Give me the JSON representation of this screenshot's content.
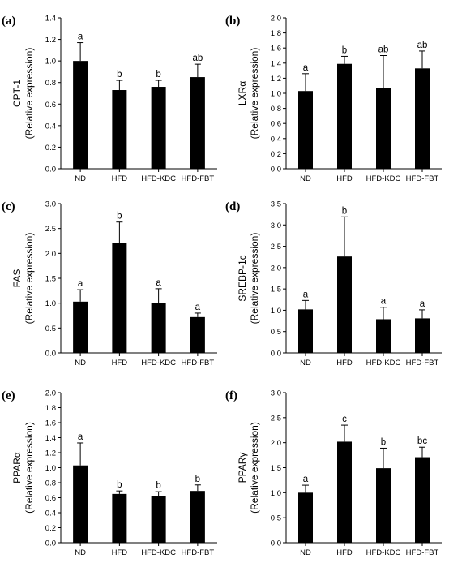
{
  "chart_data": [
    {
      "type": "bar",
      "panel_label": "(a)",
      "categories": [
        "ND",
        "HFD",
        "HFD-KDC",
        "HFD-FBT"
      ],
      "values": [
        1.0,
        0.73,
        0.76,
        0.85
      ],
      "errors": [
        0.17,
        0.09,
        0.06,
        0.12
      ],
      "significance": [
        "a",
        "b",
        "b",
        "ab"
      ],
      "ylabel_line1": "CPT-1",
      "ylabel_line2": "(Relative expression)",
      "ylim": [
        0,
        1.4
      ],
      "yticks": [
        "0.0",
        "0.2",
        "0.4",
        "0.6",
        "0.8",
        "1.0",
        "1.2",
        "1.4"
      ]
    },
    {
      "type": "bar",
      "panel_label": "(b)",
      "categories": [
        "ND",
        "HFD",
        "HFD-KDC",
        "HFD-FBT"
      ],
      "values": [
        1.03,
        1.39,
        1.07,
        1.33
      ],
      "errors": [
        0.23,
        0.1,
        0.43,
        0.23
      ],
      "significance": [
        "a",
        "b",
        "ab",
        "ab"
      ],
      "ylabel_line1": "LXRα",
      "ylabel_line2": "(Relative expression)",
      "ylim": [
        0,
        2.0
      ],
      "yticks": [
        "0.0",
        "0.2",
        "0.4",
        "0.6",
        "0.8",
        "1.0",
        "1.2",
        "1.4",
        "1.6",
        "1.8",
        "2.0"
      ]
    },
    {
      "type": "bar",
      "panel_label": "(c)",
      "categories": [
        "ND",
        "HFD",
        "HFD-KDC",
        "HFD-FBT"
      ],
      "values": [
        1.03,
        2.21,
        1.01,
        0.72
      ],
      "errors": [
        0.24,
        0.42,
        0.28,
        0.08
      ],
      "significance": [
        "a",
        "b",
        "a",
        "a"
      ],
      "ylabel_line1": "FAS",
      "ylabel_line2": "(Relative expression)",
      "ylim": [
        0,
        3.0
      ],
      "yticks": [
        "0.0",
        "0.5",
        "1.0",
        "1.5",
        "2.0",
        "2.5",
        "3.0"
      ]
    },
    {
      "type": "bar",
      "panel_label": "(d)",
      "categories": [
        "ND",
        "HFD",
        "HFD-KDC",
        "HFD-FBT"
      ],
      "values": [
        1.02,
        2.26,
        0.79,
        0.81
      ],
      "errors": [
        0.21,
        0.93,
        0.28,
        0.2
      ],
      "significance": [
        "a",
        "b",
        "a",
        "a"
      ],
      "ylabel_line1": "SREBP-1c",
      "ylabel_line2": "(Relative expression)",
      "ylim": [
        0,
        3.5
      ],
      "yticks": [
        "0.0",
        "0.5",
        "1.0",
        "1.5",
        "2.0",
        "2.5",
        "3.0",
        "3.5"
      ]
    },
    {
      "type": "bar",
      "panel_label": "(e)",
      "categories": [
        "ND",
        "HFD",
        "HFD-KDC",
        "HFD-FBT"
      ],
      "values": [
        1.03,
        0.65,
        0.62,
        0.69
      ],
      "errors": [
        0.3,
        0.04,
        0.06,
        0.08
      ],
      "significance": [
        "a",
        "b",
        "b",
        "b"
      ],
      "ylabel_line1": "PPARα",
      "ylabel_line2": "(Relative expression)",
      "ylim": [
        0,
        2.0
      ],
      "yticks": [
        "0.0",
        "0.2",
        "0.4",
        "0.6",
        "0.8",
        "1.0",
        "1.2",
        "1.4",
        "1.6",
        "1.8",
        "2.0"
      ]
    },
    {
      "type": "bar",
      "panel_label": "(f)",
      "categories": [
        "ND",
        "HFD",
        "HFD-KDC",
        "HFD-FBT"
      ],
      "values": [
        1.0,
        2.02,
        1.49,
        1.71
      ],
      "errors": [
        0.15,
        0.33,
        0.4,
        0.2
      ],
      "significance": [
        "a",
        "c",
        "b",
        "bc"
      ],
      "ylabel_line1": "PPARγ",
      "ylabel_line2": "(Relative expression)",
      "ylim": [
        0,
        3.0
      ],
      "yticks": [
        "0.0",
        "0.5",
        "1.0",
        "1.5",
        "2.0",
        "2.5",
        "3.0"
      ]
    }
  ]
}
